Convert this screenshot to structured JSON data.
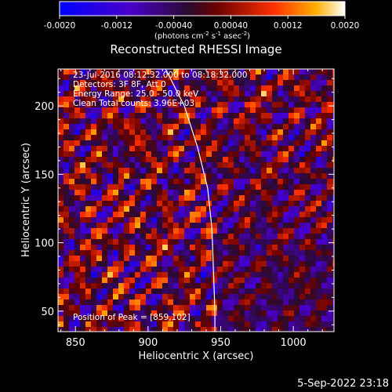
{
  "chart_data": {
    "type": "heatmap",
    "title": "Reconstructed RHESSI Image",
    "xlabel": "Heliocentric X (arcsec)",
    "ylabel": "Heliocentric Y (arcsec)",
    "xlim": [
      838,
      1028
    ],
    "ylim": [
      35,
      227
    ],
    "x_ticks": [
      850,
      900,
      950,
      1000
    ],
    "y_ticks": [
      50,
      100,
      150,
      200
    ],
    "colorbar": {
      "label_parts": [
        "(photons cm",
        "-2",
        " s",
        "-1",
        " asec",
        "-2",
        ")"
      ],
      "range": [
        -0.002,
        0.002
      ],
      "ticks": [
        "-0.0020",
        "-0.0012",
        "-0.00040",
        "0.00040",
        "0.0012",
        "0.0020"
      ]
    },
    "annotations": [
      "23-Jul-2016 08:12:32.000 to 08:18:32.000",
      "Detectors: 3F 8F, Att 0",
      "Energy Range: 25.0 - 50.0 keV",
      "Clean     Total counts: 3.96E+03"
    ],
    "peak_label": "Position of Peak = [859,102]",
    "limb_curve": [
      [
        912,
        227
      ],
      [
        925,
        200
      ],
      [
        934,
        170
      ],
      [
        941,
        140
      ],
      [
        944,
        110
      ],
      [
        945,
        80
      ],
      [
        946,
        50
      ],
      [
        946,
        35
      ]
    ],
    "grid": false
  },
  "footer": {
    "timestamp": "5-Sep-2022 23:18"
  }
}
